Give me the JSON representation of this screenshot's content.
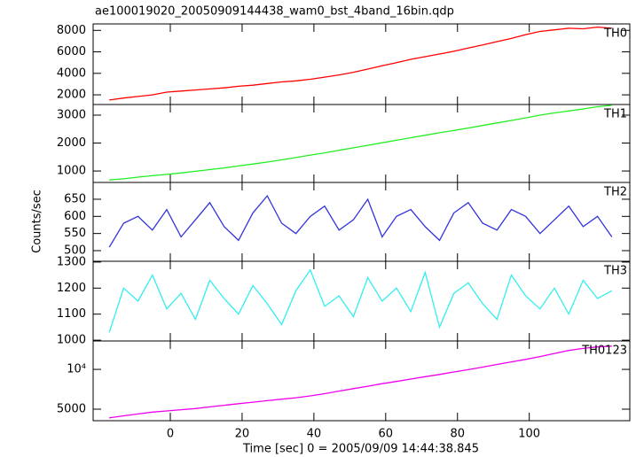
{
  "title": "ae100019020_20050909144438_wam0_bst_4band_16bin.qdp",
  "xlabel": "Time [sec] 0 = 2005/09/09 14:44:38.845",
  "ylabel": "Counts/sec",
  "chart_data": [
    {
      "type": "line",
      "label": "TH0",
      "color": "#ff0000",
      "x": [
        -17,
        -13,
        -9,
        -5,
        -1,
        3,
        7,
        11,
        15,
        19,
        23,
        27,
        31,
        35,
        39,
        43,
        47,
        51,
        55,
        59,
        63,
        67,
        71,
        75,
        79,
        83,
        87,
        91,
        95,
        99,
        103,
        107,
        111,
        115,
        119,
        123
      ],
      "values": [
        1520,
        1700,
        1850,
        2000,
        2250,
        2350,
        2450,
        2550,
        2650,
        2800,
        2900,
        3050,
        3200,
        3300,
        3450,
        3650,
        3850,
        4100,
        4400,
        4700,
        5000,
        5300,
        5550,
        5800,
        6050,
        6350,
        6650,
        6950,
        7250,
        7600,
        7900,
        8050,
        8200,
        8150,
        8300,
        8200
      ],
      "ylim": [
        1100,
        8600
      ],
      "yticks": [
        2000,
        4000,
        6000,
        8000
      ]
    },
    {
      "type": "line",
      "label": "TH1",
      "color": "#22ee22",
      "x": [
        -17,
        -13,
        -9,
        -5,
        -1,
        3,
        7,
        11,
        15,
        19,
        23,
        27,
        31,
        35,
        39,
        43,
        47,
        51,
        55,
        59,
        63,
        67,
        71,
        75,
        79,
        83,
        87,
        91,
        95,
        99,
        103,
        107,
        111,
        115,
        119,
        123
      ],
      "values": [
        680,
        720,
        780,
        830,
        880,
        930,
        990,
        1050,
        1110,
        1180,
        1250,
        1320,
        1400,
        1480,
        1570,
        1650,
        1740,
        1830,
        1920,
        2010,
        2100,
        2190,
        2280,
        2370,
        2450,
        2540,
        2630,
        2720,
        2810,
        2900,
        3000,
        3080,
        3150,
        3220,
        3300,
        3350
      ],
      "ylim": [
        590,
        3380
      ],
      "yticks": [
        1000,
        2000,
        3000
      ]
    },
    {
      "type": "line",
      "label": "TH2",
      "color": "#3333dd",
      "x": [
        -17,
        -13,
        -9,
        -5,
        -1,
        3,
        7,
        11,
        15,
        19,
        23,
        27,
        31,
        35,
        39,
        43,
        47,
        51,
        55,
        59,
        63,
        67,
        71,
        75,
        79,
        83,
        87,
        91,
        95,
        99,
        103,
        107,
        111,
        115,
        119,
        123
      ],
      "values": [
        510,
        580,
        600,
        560,
        620,
        540,
        590,
        640,
        570,
        530,
        610,
        660,
        580,
        550,
        600,
        630,
        560,
        590,
        650,
        540,
        600,
        620,
        570,
        530,
        610,
        640,
        580,
        560,
        620,
        600,
        550,
        590,
        630,
        570,
        600,
        540
      ],
      "ylim": [
        469,
        699
      ],
      "yticks": [
        500,
        550,
        600,
        650
      ]
    },
    {
      "type": "line",
      "label": "TH3",
      "color": "#33eeee",
      "x": [
        -17,
        -13,
        -9,
        -5,
        -1,
        3,
        7,
        11,
        15,
        19,
        23,
        27,
        31,
        35,
        39,
        43,
        47,
        51,
        55,
        59,
        63,
        67,
        71,
        75,
        79,
        83,
        87,
        91,
        95,
        99,
        103,
        107,
        111,
        115,
        119,
        123
      ],
      "values": [
        1030,
        1200,
        1150,
        1250,
        1120,
        1180,
        1080,
        1230,
        1160,
        1100,
        1210,
        1140,
        1060,
        1190,
        1270,
        1130,
        1170,
        1090,
        1240,
        1150,
        1200,
        1110,
        1260,
        1050,
        1180,
        1220,
        1140,
        1080,
        1250,
        1170,
        1120,
        1200,
        1100,
        1230,
        1160,
        1190
      ],
      "ylim": [
        997,
        1303
      ],
      "yticks": [
        1000,
        1100,
        1200,
        1300
      ]
    },
    {
      "type": "line",
      "label": "TH0123",
      "color": "#ee00ee",
      "log_scale": true,
      "x": [
        -17,
        -13,
        -9,
        -5,
        -1,
        3,
        7,
        11,
        15,
        19,
        23,
        27,
        31,
        35,
        39,
        43,
        47,
        51,
        55,
        59,
        63,
        67,
        71,
        75,
        79,
        83,
        87,
        91,
        95,
        99,
        103,
        107,
        111,
        115,
        119,
        123
      ],
      "values": [
        4300,
        4450,
        4600,
        4750,
        4850,
        4950,
        5050,
        5200,
        5350,
        5500,
        5650,
        5800,
        5950,
        6100,
        6300,
        6550,
        6850,
        7150,
        7450,
        7800,
        8100,
        8450,
        8800,
        9150,
        9550,
        9950,
        10400,
        10900,
        11400,
        11900,
        12500,
        13200,
        13900,
        14400,
        14800,
        15000
      ],
      "ylim": [
        4090,
        16400
      ],
      "yticks": [
        5000,
        {
          "value": 10000,
          "label": "10⁴"
        }
      ],
      "xlim": [
        -21.5,
        128
      ],
      "xticks": [
        0,
        20,
        40,
        60,
        80,
        100
      ]
    }
  ]
}
